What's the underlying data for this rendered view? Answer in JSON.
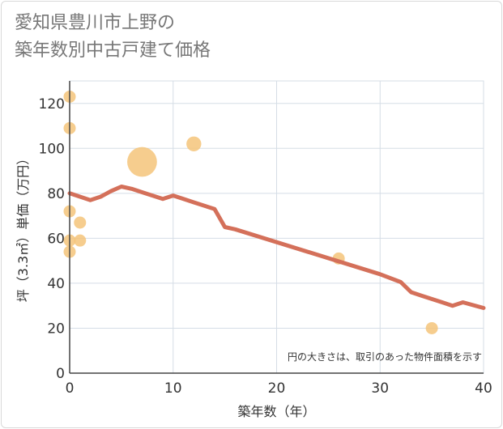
{
  "chart_data": {
    "type": "scatter",
    "title_line1": "愛知県豊川市上野の",
    "title_line2": "築年数別中古戸建て価格",
    "xlabel": "築年数（年）",
    "ylabel": "坪（3.3㎡）単価（万円）",
    "xlim": [
      0,
      40
    ],
    "ylim": [
      0,
      130
    ],
    "x_ticks": [
      0,
      10,
      20,
      30,
      40
    ],
    "y_ticks": [
      0,
      20,
      40,
      60,
      80,
      100,
      120
    ],
    "grid": true,
    "note": "円の大きさは、取引のあった物件面積を示す",
    "colors": {
      "bubble": "#f5c47a",
      "line": "#d4705a",
      "grid": "#d5dde6",
      "axis": "#444444"
    },
    "points": [
      {
        "x": 0,
        "y": 123,
        "size": 1
      },
      {
        "x": 0,
        "y": 109,
        "size": 1
      },
      {
        "x": 0,
        "y": 72,
        "size": 1
      },
      {
        "x": 0,
        "y": 59,
        "size": 1
      },
      {
        "x": 0,
        "y": 54,
        "size": 1
      },
      {
        "x": 1,
        "y": 67,
        "size": 1
      },
      {
        "x": 1,
        "y": 59,
        "size": 1
      },
      {
        "x": 7,
        "y": 94,
        "size": 6
      },
      {
        "x": 12,
        "y": 102,
        "size": 1.5
      },
      {
        "x": 26,
        "y": 51,
        "size": 1
      },
      {
        "x": 35,
        "y": 20,
        "size": 1
      }
    ],
    "trend": {
      "x": [
        0,
        2,
        3,
        4,
        5,
        6,
        7,
        8,
        9,
        10,
        11,
        12,
        13,
        14,
        15,
        16,
        30,
        32,
        33,
        34,
        35,
        36,
        37,
        38,
        40
      ],
      "y": [
        80,
        77,
        78.5,
        81,
        83,
        82,
        80.5,
        79,
        77.5,
        79,
        77.5,
        76,
        74.5,
        73,
        65,
        64,
        44,
        40.5,
        36,
        34.5,
        33,
        31.5,
        30,
        31.5,
        29
      ]
    }
  }
}
